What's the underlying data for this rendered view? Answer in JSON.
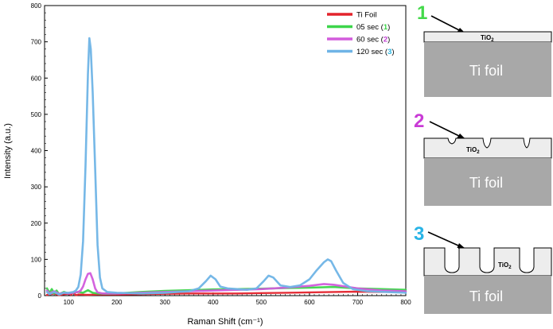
{
  "chart_data": {
    "type": "line",
    "title": "",
    "xlabel": "Raman Shift (cm⁻¹)",
    "ylabel": "Intensity (a.u.)",
    "xlim": [
      50,
      800
    ],
    "ylim": [
      0,
      800
    ],
    "xticks": [
      100,
      200,
      300,
      400,
      500,
      600,
      700,
      800
    ],
    "yticks": [
      0,
      100,
      200,
      300,
      400,
      500,
      600,
      700,
      800
    ],
    "grid": false,
    "legend_position": "top-right",
    "series": [
      {
        "name": "Ti Foil",
        "color": "#e3232c",
        "points": [
          [
            55,
            2
          ],
          [
            70,
            6
          ],
          [
            80,
            1
          ],
          [
            90,
            4
          ],
          [
            100,
            5
          ],
          [
            105,
            2
          ],
          [
            110,
            9
          ],
          [
            115,
            1
          ],
          [
            120,
            3
          ],
          [
            140,
            2
          ],
          [
            160,
            3
          ],
          [
            180,
            3
          ],
          [
            200,
            3
          ],
          [
            250,
            4
          ],
          [
            300,
            5
          ],
          [
            350,
            6
          ],
          [
            400,
            6
          ],
          [
            450,
            6
          ],
          [
            500,
            7
          ],
          [
            550,
            8
          ],
          [
            600,
            9
          ],
          [
            650,
            10
          ],
          [
            700,
            11
          ],
          [
            750,
            10
          ],
          [
            800,
            12
          ]
        ]
      },
      {
        "name": "05 sec",
        "marker": "1",
        "marker_color": "#3cd54a",
        "color": "#3cd54a",
        "points": [
          [
            55,
            20
          ],
          [
            60,
            8
          ],
          [
            65,
            18
          ],
          [
            70,
            6
          ],
          [
            75,
            14
          ],
          [
            80,
            4
          ],
          [
            90,
            10
          ],
          [
            100,
            6
          ],
          [
            110,
            8
          ],
          [
            120,
            10
          ],
          [
            130,
            8
          ],
          [
            140,
            15
          ],
          [
            150,
            8
          ],
          [
            160,
            6
          ],
          [
            180,
            5
          ],
          [
            200,
            6
          ],
          [
            250,
            10
          ],
          [
            300,
            13
          ],
          [
            350,
            15
          ],
          [
            400,
            17
          ],
          [
            450,
            18
          ],
          [
            500,
            19
          ],
          [
            550,
            21
          ],
          [
            600,
            22
          ],
          [
            650,
            24
          ],
          [
            700,
            20
          ],
          [
            750,
            18
          ],
          [
            800,
            16
          ]
        ]
      },
      {
        "name": "60 sec",
        "marker": "2",
        "marker_color": "#c23fd4",
        "color": "#d25bdc",
        "points": [
          [
            55,
            14
          ],
          [
            60,
            6
          ],
          [
            70,
            12
          ],
          [
            80,
            5
          ],
          [
            90,
            8
          ],
          [
            100,
            6
          ],
          [
            110,
            8
          ],
          [
            120,
            10
          ],
          [
            125,
            14
          ],
          [
            130,
            25
          ],
          [
            135,
            45
          ],
          [
            140,
            60
          ],
          [
            145,
            62
          ],
          [
            150,
            45
          ],
          [
            155,
            20
          ],
          [
            160,
            9
          ],
          [
            170,
            6
          ],
          [
            200,
            6
          ],
          [
            250,
            8
          ],
          [
            300,
            10
          ],
          [
            350,
            12
          ],
          [
            400,
            14
          ],
          [
            450,
            16
          ],
          [
            500,
            18
          ],
          [
            550,
            22
          ],
          [
            600,
            27
          ],
          [
            630,
            32
          ],
          [
            650,
            30
          ],
          [
            700,
            20
          ],
          [
            750,
            14
          ],
          [
            800,
            12
          ]
        ]
      },
      {
        "name": "120 sec",
        "marker": "3",
        "marker_color": "#2ab6e2",
        "color": "#6fb4e6",
        "points": [
          [
            55,
            10
          ],
          [
            60,
            4
          ],
          [
            70,
            10
          ],
          [
            80,
            3
          ],
          [
            90,
            8
          ],
          [
            100,
            8
          ],
          [
            110,
            10
          ],
          [
            115,
            14
          ],
          [
            120,
            24
          ],
          [
            125,
            58
          ],
          [
            130,
            150
          ],
          [
            135,
            360
          ],
          [
            140,
            610
          ],
          [
            143,
            710
          ],
          [
            146,
            680
          ],
          [
            150,
            560
          ],
          [
            155,
            350
          ],
          [
            160,
            140
          ],
          [
            165,
            50
          ],
          [
            170,
            20
          ],
          [
            180,
            10
          ],
          [
            200,
            8
          ],
          [
            250,
            6
          ],
          [
            300,
            8
          ],
          [
            350,
            12
          ],
          [
            370,
            20
          ],
          [
            385,
            40
          ],
          [
            395,
            55
          ],
          [
            405,
            45
          ],
          [
            415,
            25
          ],
          [
            430,
            20
          ],
          [
            450,
            18
          ],
          [
            470,
            16
          ],
          [
            490,
            20
          ],
          [
            505,
            40
          ],
          [
            515,
            55
          ],
          [
            525,
            50
          ],
          [
            540,
            28
          ],
          [
            560,
            24
          ],
          [
            580,
            28
          ],
          [
            600,
            45
          ],
          [
            615,
            70
          ],
          [
            630,
            92
          ],
          [
            638,
            100
          ],
          [
            645,
            95
          ],
          [
            655,
            70
          ],
          [
            670,
            35
          ],
          [
            690,
            18
          ],
          [
            720,
            12
          ],
          [
            760,
            10
          ],
          [
            800,
            8
          ]
        ]
      }
    ]
  },
  "diagram": {
    "layer_label": "TiO",
    "layer_subscript": "2",
    "substrate_label": "Ti foil",
    "steps": [
      {
        "number": "1",
        "color": "#43d94a"
      },
      {
        "number": "2",
        "color": "#c93bd6"
      },
      {
        "number": "3",
        "color": "#29b4e6"
      }
    ]
  }
}
